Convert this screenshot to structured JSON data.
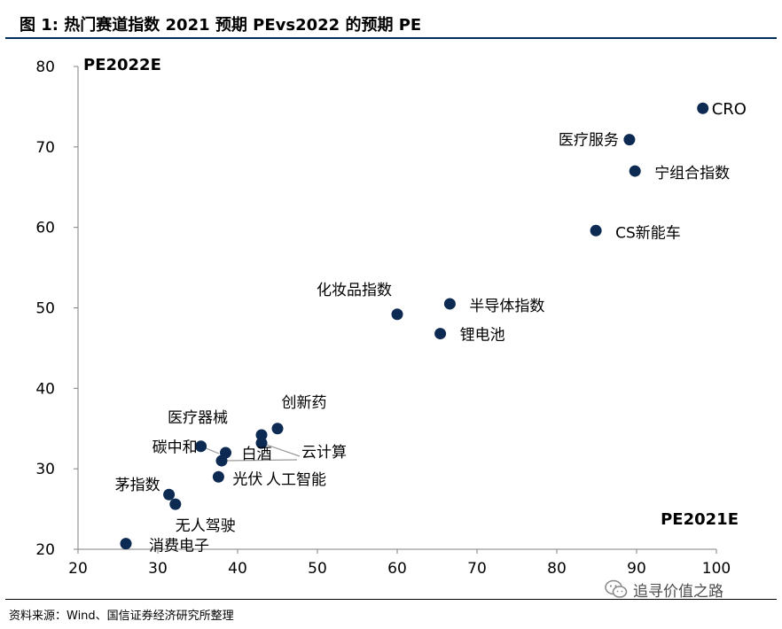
{
  "title": "图  1:  热门赛道指数 2021 预期 PEvs2022 的预期 PE",
  "source": "资料来源：Wind、国信证券经济研究所整理",
  "watermark": "追寻价值之路",
  "colors": {
    "marker": "#0d2a52",
    "axis": "#808080",
    "title_rule": "#002c5a",
    "leader": "#9a9a9a"
  },
  "chart_data": {
    "type": "scatter",
    "title": "",
    "xlabel": "PE2021E",
    "ylabel": "PE2022E",
    "xlim": [
      20,
      100
    ],
    "ylim": [
      20,
      80
    ],
    "x_ticks": [
      "20",
      "30",
      "40",
      "50",
      "60",
      "70",
      "80",
      "90",
      "100"
    ],
    "y_ticks": [
      "20",
      "30",
      "40",
      "50",
      "60",
      "70",
      "80"
    ],
    "grid": false,
    "points": [
      {
        "label": "CRO",
        "x": 98.3,
        "y": 74.8
      },
      {
        "label": "医疗服务",
        "x": 89.1,
        "y": 70.9
      },
      {
        "label": "宁组合指数",
        "x": 89.8,
        "y": 67.0
      },
      {
        "label": "CS新能车",
        "x": 84.9,
        "y": 59.6
      },
      {
        "label": "化妆品指数",
        "x": 60.0,
        "y": 49.2
      },
      {
        "label": "半导体指数",
        "x": 66.6,
        "y": 50.5
      },
      {
        "label": "锂电池",
        "x": 65.4,
        "y": 46.8
      },
      {
        "label": "创新药",
        "x": 45.0,
        "y": 35.0
      },
      {
        "label": "医疗器械",
        "x": 43.0,
        "y": 34.2
      },
      {
        "label": "云计算",
        "x": 43.0,
        "y": 33.2
      },
      {
        "label": "碳中和",
        "x": 35.4,
        "y": 32.8
      },
      {
        "label": "白酒",
        "x": 38.5,
        "y": 32.0
      },
      {
        "label": "人工智能",
        "x": 38.0,
        "y": 31.0
      },
      {
        "label": "光伏",
        "x": 37.6,
        "y": 29.0
      },
      {
        "label": "茅指数",
        "x": 31.4,
        "y": 26.8
      },
      {
        "label": "无人驾驶",
        "x": 32.2,
        "y": 25.6
      },
      {
        "label": "消费电子",
        "x": 26.0,
        "y": 20.7
      }
    ]
  }
}
